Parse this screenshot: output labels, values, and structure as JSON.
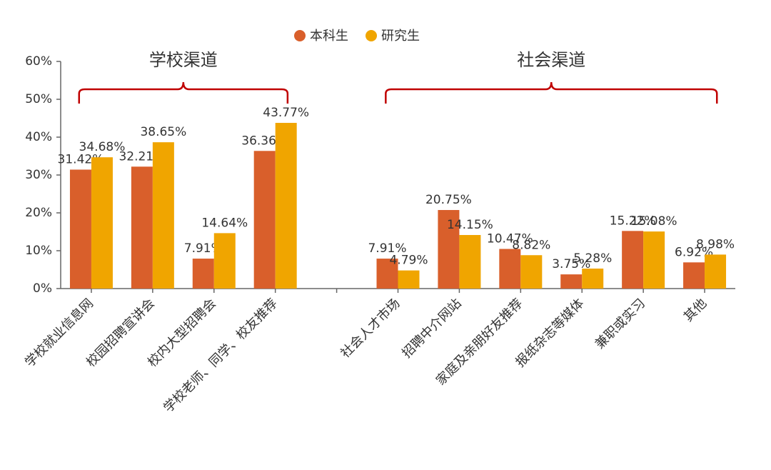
{
  "chart_data": {
    "type": "bar",
    "categories": [
      "学校就业信息网",
      "校园招聘宣讲会",
      "校内大型招聘会",
      "学校老师、同学、校友推荐",
      null,
      "社会人才市场",
      "招聘中介网站",
      "家庭及亲朋好友推荐",
      "报纸杂志等媒体",
      "兼职或实习",
      "其他"
    ],
    "series": [
      {
        "name": "本科生",
        "color": "#d95f2b",
        "values": [
          31.42,
          32.21,
          7.91,
          36.36,
          null,
          7.91,
          20.75,
          10.47,
          3.75,
          15.22,
          6.92
        ],
        "value_labels": [
          "31.42%",
          "32.21%",
          "7.91%",
          "36.36%",
          null,
          "7.91%",
          "20.75%",
          "10.47%",
          "3.75%",
          "15.22%",
          "6.92%"
        ]
      },
      {
        "name": "研究生",
        "color": "#f0a500",
        "values": [
          34.68,
          38.65,
          14.64,
          43.77,
          null,
          4.79,
          14.15,
          8.82,
          5.28,
          15.08,
          8.98
        ],
        "value_labels": [
          "34.68%",
          "38.65%",
          "14.64%",
          "43.77%",
          null,
          "4.79%",
          "14.15%",
          "8.82%",
          "5.28%",
          "15.08%",
          "8.98%"
        ]
      }
    ],
    "annotations": [
      "学校渠道",
      "社会渠道"
    ],
    "ylim": [
      0,
      60
    ],
    "yticks": [
      {
        "value": 0,
        "label": "0%"
      },
      {
        "value": 10,
        "label": "10%"
      },
      {
        "value": 20,
        "label": "20%"
      },
      {
        "value": 30,
        "label": "30%"
      },
      {
        "value": 40,
        "label": "40%"
      },
      {
        "value": 50,
        "label": "50%"
      },
      {
        "value": 60,
        "label": "60%"
      }
    ],
    "legend": "top"
  }
}
